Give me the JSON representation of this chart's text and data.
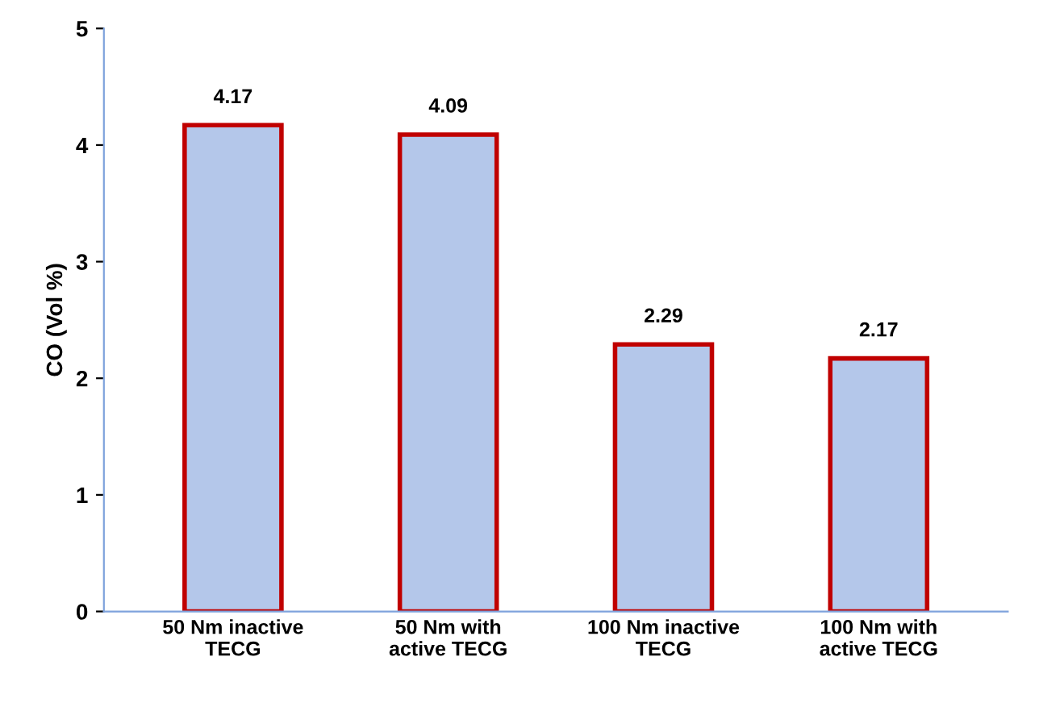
{
  "chart_data": {
    "type": "bar",
    "ylabel": "CO (Vol %)",
    "categories": [
      "50 Nm inactive\nTECG",
      "50 Nm with\nactive TECG",
      "100 Nm inactive\nTECG",
      "100 Nm with\nactive TECG"
    ],
    "values": [
      4.17,
      4.09,
      2.29,
      2.17
    ],
    "color": "#b4c7ea",
    "ylim": [
      0,
      5
    ],
    "yticks": [
      0,
      1,
      2,
      3,
      4,
      5
    ],
    "data_labels": true,
    "grid": false
  }
}
